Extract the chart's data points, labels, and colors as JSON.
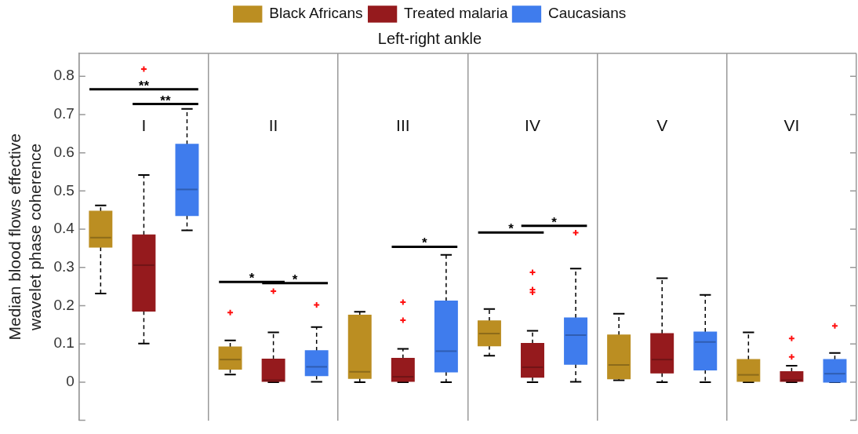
{
  "chart_data": {
    "type": "box",
    "title": "Left-right ankle",
    "ylabel": "Median blood flows effective\nwavelet phase coherence",
    "categories": [
      "I",
      "II",
      "III",
      "IV",
      "V",
      "VI"
    ],
    "ylim": [
      -0.1,
      0.86
    ],
    "yticks": [
      {
        "value": -0.1,
        "label": null
      },
      0,
      0.1,
      0.2,
      0.3,
      0.4,
      0.5,
      0.6,
      0.7,
      0.8
    ],
    "grid": "x",
    "legend": "top",
    "series": [
      {
        "name": "Black Africans",
        "color": "#bb8e22",
        "boxes": [
          {
            "low": 0.232,
            "q1": 0.353,
            "median": 0.378,
            "q3": 0.447,
            "high": 0.462
          },
          {
            "low": 0.02,
            "q1": 0.034,
            "median": 0.059,
            "q3": 0.092,
            "high": 0.109,
            "outliers": [
              0.182
            ]
          },
          {
            "low": 0,
            "q1": 0.01,
            "median": 0.027,
            "q3": 0.175,
            "high": 0.184
          },
          {
            "low": 0.069,
            "q1": 0.095,
            "median": 0.127,
            "q3": 0.16,
            "high": 0.191
          },
          {
            "low": 0.005,
            "q1": 0.009,
            "median": 0.045,
            "q3": 0.123,
            "high": 0.179
          },
          {
            "low": 0,
            "q1": 0.002,
            "median": 0.019,
            "q3": 0.059,
            "high": 0.13
          }
        ]
      },
      {
        "name": "Treated malaria",
        "color": "#951a1d",
        "boxes": [
          {
            "low": 0.101,
            "q1": 0.186,
            "median": 0.306,
            "q3": 0.385,
            "high": 0.542,
            "outliers": [
              0.819
            ]
          },
          {
            "low": 0,
            "q1": 0.002,
            "median": 0.005,
            "q3": 0.06,
            "high": 0.13,
            "outliers": [
              0.238
            ]
          },
          {
            "low": 0,
            "q1": 0.002,
            "median": 0.014,
            "q3": 0.062,
            "high": 0.087,
            "outliers": [
              0.209,
              0.162
            ]
          },
          {
            "low": 0,
            "q1": 0.013,
            "median": 0.039,
            "q3": 0.101,
            "high": 0.134,
            "outliers": [
              0.287,
              0.242,
              0.235
            ]
          },
          {
            "low": 0,
            "q1": 0.024,
            "median": 0.059,
            "q3": 0.127,
            "high": 0.272
          },
          {
            "low": 0,
            "q1": 0.002,
            "median": 0.005,
            "q3": 0.027,
            "high": 0.043,
            "outliers": [
              0.114,
              0.066
            ]
          }
        ]
      },
      {
        "name": "Caucasians",
        "color": "#3f7ced",
        "boxes": [
          {
            "low": 0.397,
            "q1": 0.436,
            "median": 0.504,
            "q3": 0.622,
            "high": 0.715
          },
          {
            "low": 0.001,
            "q1": 0.017,
            "median": 0.04,
            "q3": 0.082,
            "high": 0.144,
            "outliers": [
              0.202
            ]
          },
          {
            "low": 0,
            "q1": 0.027,
            "median": 0.081,
            "q3": 0.212,
            "high": 0.333
          },
          {
            "low": 0.001,
            "q1": 0.047,
            "median": 0.123,
            "q3": 0.168,
            "high": 0.297,
            "outliers": [
              0.391
            ]
          },
          {
            "low": 0,
            "q1": 0.032,
            "median": 0.105,
            "q3": 0.131,
            "high": 0.228
          },
          {
            "low": 0,
            "q1": 0,
            "median": 0.022,
            "q3": 0.059,
            "high": 0.076,
            "outliers": [
              0.147
            ]
          }
        ]
      }
    ],
    "annotations": [
      "**",
      "**",
      "*",
      "*",
      "*",
      "*",
      "*"
    ]
  }
}
